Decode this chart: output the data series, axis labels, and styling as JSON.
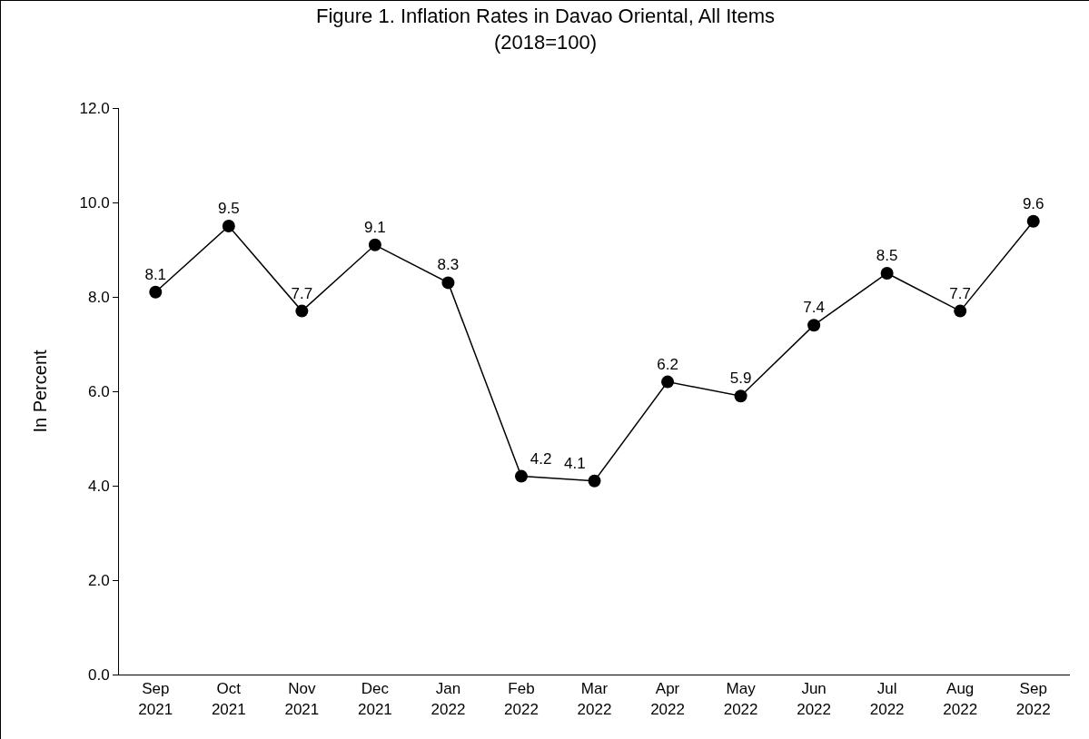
{
  "chart_data": {
    "type": "line",
    "title": "Figure 1. Inflation Rates in Davao Oriental, All Items\n(2018=100)",
    "ylabel": "In Percent",
    "categories": [
      "Sep\n2021",
      "Oct\n2021",
      "Nov\n2021",
      "Dec\n2021",
      "Jan\n2022",
      "Feb\n2022",
      "Mar\n2022",
      "Apr\n2022",
      "May\n2022",
      "Jun\n2022",
      "Jul\n2022",
      "Aug\n2022",
      "Sep\n2022"
    ],
    "series": [
      {
        "color": "#000000",
        "values": [
          8.1,
          9.5,
          7.7,
          9.1,
          8.3,
          4.2,
          4.1,
          6.2,
          5.9,
          7.4,
          8.5,
          7.7,
          9.6
        ]
      }
    ],
    "ylim": [
      0,
      12
    ],
    "yticks": [
      {
        "value": 0,
        "label": "0.0"
      },
      {
        "value": 2,
        "label": "2.0"
      },
      {
        "value": 4,
        "label": "4.0"
      },
      {
        "value": 6,
        "label": "6.0"
      },
      {
        "value": 8,
        "label": "8.0"
      },
      {
        "value": 10,
        "label": "10.0"
      },
      {
        "value": 12,
        "label": "12.0"
      }
    ],
    "data_labels": true,
    "grid": false,
    "marker": "circle",
    "line_style": "solid"
  }
}
